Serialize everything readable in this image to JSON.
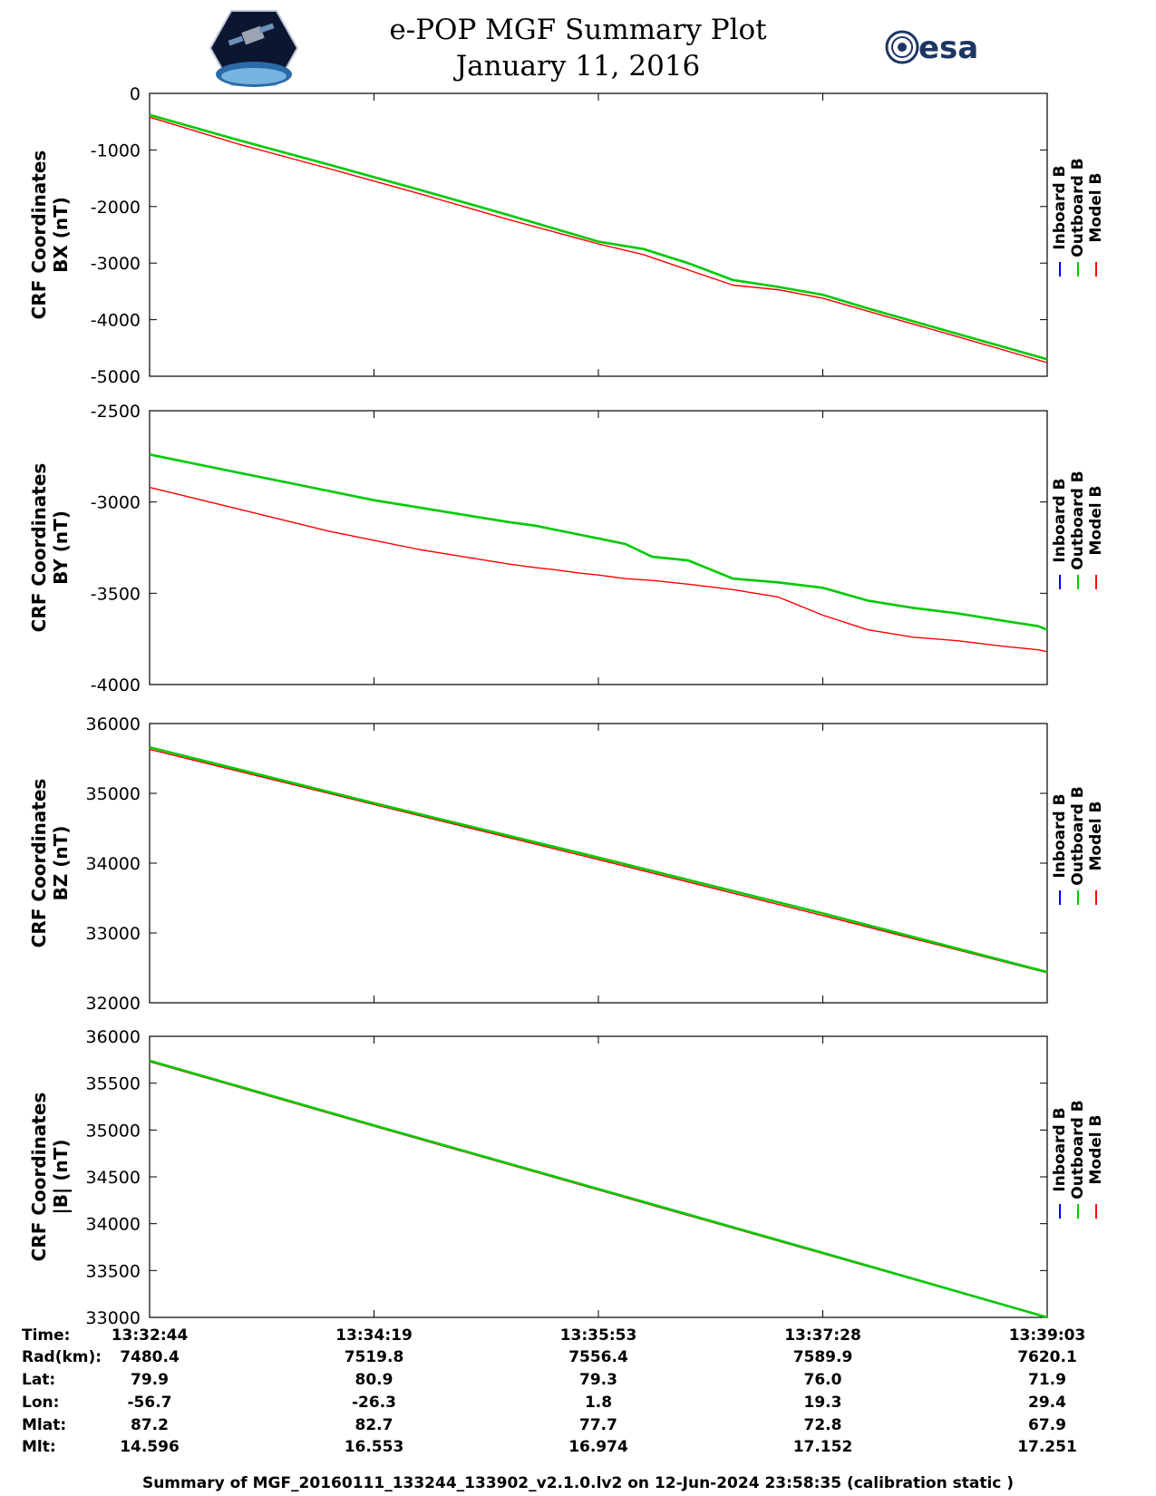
{
  "header": {
    "title_line1": "e-POP MGF Summary Plot",
    "title_line2": "January 11, 2016",
    "logo_right_text": "esa"
  },
  "legend": {
    "entries": [
      {
        "name": "Inboard B",
        "color": "#0000ff"
      },
      {
        "name": "Outboard B",
        "color": "#00cc00"
      },
      {
        "name": "Model B",
        "color": "#ff0000"
      }
    ]
  },
  "chart_data": [
    {
      "type": "line",
      "ylabel": [
        "CRF Coordinates",
        "BX (nT)"
      ],
      "ylim": [
        -5000,
        0
      ],
      "yticks": [
        0,
        -1000,
        -2000,
        -3000,
        -4000,
        -5000
      ],
      "x": [
        0,
        0.1,
        0.2,
        0.3,
        0.4,
        0.5,
        0.55,
        0.6,
        0.65,
        0.7,
        0.75,
        0.8,
        0.9,
        1.0
      ],
      "series": [
        {
          "name": "Inboard B",
          "values": [
            -380,
            -830,
            -1260,
            -1700,
            -2150,
            -2620,
            -2750,
            -3000,
            -3300,
            -3420,
            -3560,
            -3800,
            -4250,
            -4700
          ]
        },
        {
          "name": "Outboard B",
          "values": [
            -380,
            -830,
            -1260,
            -1700,
            -2150,
            -2620,
            -2750,
            -3000,
            -3300,
            -3420,
            -3560,
            -3800,
            -4250,
            -4700
          ]
        },
        {
          "name": "Model B",
          "values": [
            -420,
            -900,
            -1330,
            -1770,
            -2230,
            -2660,
            -2850,
            -3120,
            -3390,
            -3470,
            -3620,
            -3850,
            -4300,
            -4760
          ]
        }
      ]
    },
    {
      "type": "line",
      "ylabel": [
        "CRF Coordinates",
        "BY (nT)"
      ],
      "ylim": [
        -4000,
        -2500
      ],
      "yticks": [
        -2500,
        -3000,
        -3500,
        -4000
      ],
      "x": [
        0,
        0.05,
        0.1,
        0.15,
        0.2,
        0.25,
        0.3,
        0.35,
        0.4,
        0.43,
        0.45,
        0.48,
        0.5,
        0.53,
        0.56,
        0.6,
        0.65,
        0.7,
        0.75,
        0.8,
        0.85,
        0.9,
        0.95,
        0.99,
        1.0
      ],
      "series": [
        {
          "name": "Inboard B",
          "values": [
            -2740,
            -2790,
            -2840,
            -2890,
            -2940,
            -2990,
            -3030,
            -3070,
            -3110,
            -3130,
            -3150,
            -3180,
            -3200,
            -3230,
            -3300,
            -3320,
            -3420,
            -3440,
            -3470,
            -3540,
            -3580,
            -3610,
            -3650,
            -3680,
            -3700
          ]
        },
        {
          "name": "Outboard B",
          "values": [
            -2740,
            -2790,
            -2840,
            -2890,
            -2940,
            -2990,
            -3030,
            -3070,
            -3110,
            -3130,
            -3150,
            -3180,
            -3200,
            -3230,
            -3300,
            -3320,
            -3420,
            -3440,
            -3470,
            -3540,
            -3580,
            -3610,
            -3650,
            -3680,
            -3700
          ]
        },
        {
          "name": "Model B",
          "values": [
            -2920,
            -2980,
            -3040,
            -3100,
            -3160,
            -3210,
            -3260,
            -3300,
            -3340,
            -3360,
            -3370,
            -3390,
            -3400,
            -3420,
            -3430,
            -3450,
            -3480,
            -3520,
            -3620,
            -3700,
            -3740,
            -3760,
            -3790,
            -3810,
            -3820
          ]
        }
      ]
    },
    {
      "type": "line",
      "ylabel": [
        "CRF Coordinates",
        "BZ (nT)"
      ],
      "ylim": [
        32000,
        36000
      ],
      "yticks": [
        36000,
        35000,
        34000,
        33000,
        32000
      ],
      "x": [
        0,
        0.25,
        0.5,
        0.75,
        1.0
      ],
      "series": [
        {
          "name": "Inboard B",
          "values": [
            35660,
            34860,
            34080,
            33280,
            32440
          ]
        },
        {
          "name": "Outboard B",
          "values": [
            35660,
            34860,
            34080,
            33280,
            32440
          ]
        },
        {
          "name": "Model B",
          "values": [
            35630,
            34840,
            34050,
            33250,
            32430
          ]
        }
      ]
    },
    {
      "type": "line",
      "ylabel": [
        "CRF Coordinates",
        "|B| (nT)"
      ],
      "ylim": [
        33000,
        36000
      ],
      "yticks": [
        36000,
        35500,
        35000,
        34500,
        34000,
        33500,
        33000
      ],
      "x": [
        0,
        0.25,
        0.5,
        0.75,
        1.0
      ],
      "series": [
        {
          "name": "Inboard B",
          "values": [
            35740,
            35050,
            34370,
            33690,
            33000
          ]
        },
        {
          "name": "Outboard B",
          "values": [
            35740,
            35050,
            34370,
            33690,
            33000
          ]
        },
        {
          "name": "Model B",
          "values": [
            35730,
            35040,
            34360,
            33680,
            33000
          ]
        }
      ]
    }
  ],
  "orbit_table": {
    "row_labels": [
      "Time:",
      "Rad(km):",
      "Lat:",
      "Lon:",
      "Mlat:",
      "Mlt:"
    ],
    "columns": [
      [
        "13:32:44",
        "7480.4",
        "79.9",
        "-56.7",
        "87.2",
        "14.596"
      ],
      [
        "13:34:19",
        "7519.8",
        "80.9",
        "-26.3",
        "82.7",
        "16.553"
      ],
      [
        "13:35:53",
        "7556.4",
        "79.3",
        "1.8",
        "77.7",
        "16.974"
      ],
      [
        "13:37:28",
        "7589.9",
        "76.0",
        "19.3",
        "72.8",
        "17.152"
      ],
      [
        "13:39:03",
        "7620.1",
        "71.9",
        "29.4",
        "67.9",
        "17.251"
      ]
    ]
  },
  "footer": {
    "text": "Summary of MGF_20160111_133244_133902_v2.1.0.lv2 on 12-Jun-2024 23:58:35 (calibration static )"
  }
}
